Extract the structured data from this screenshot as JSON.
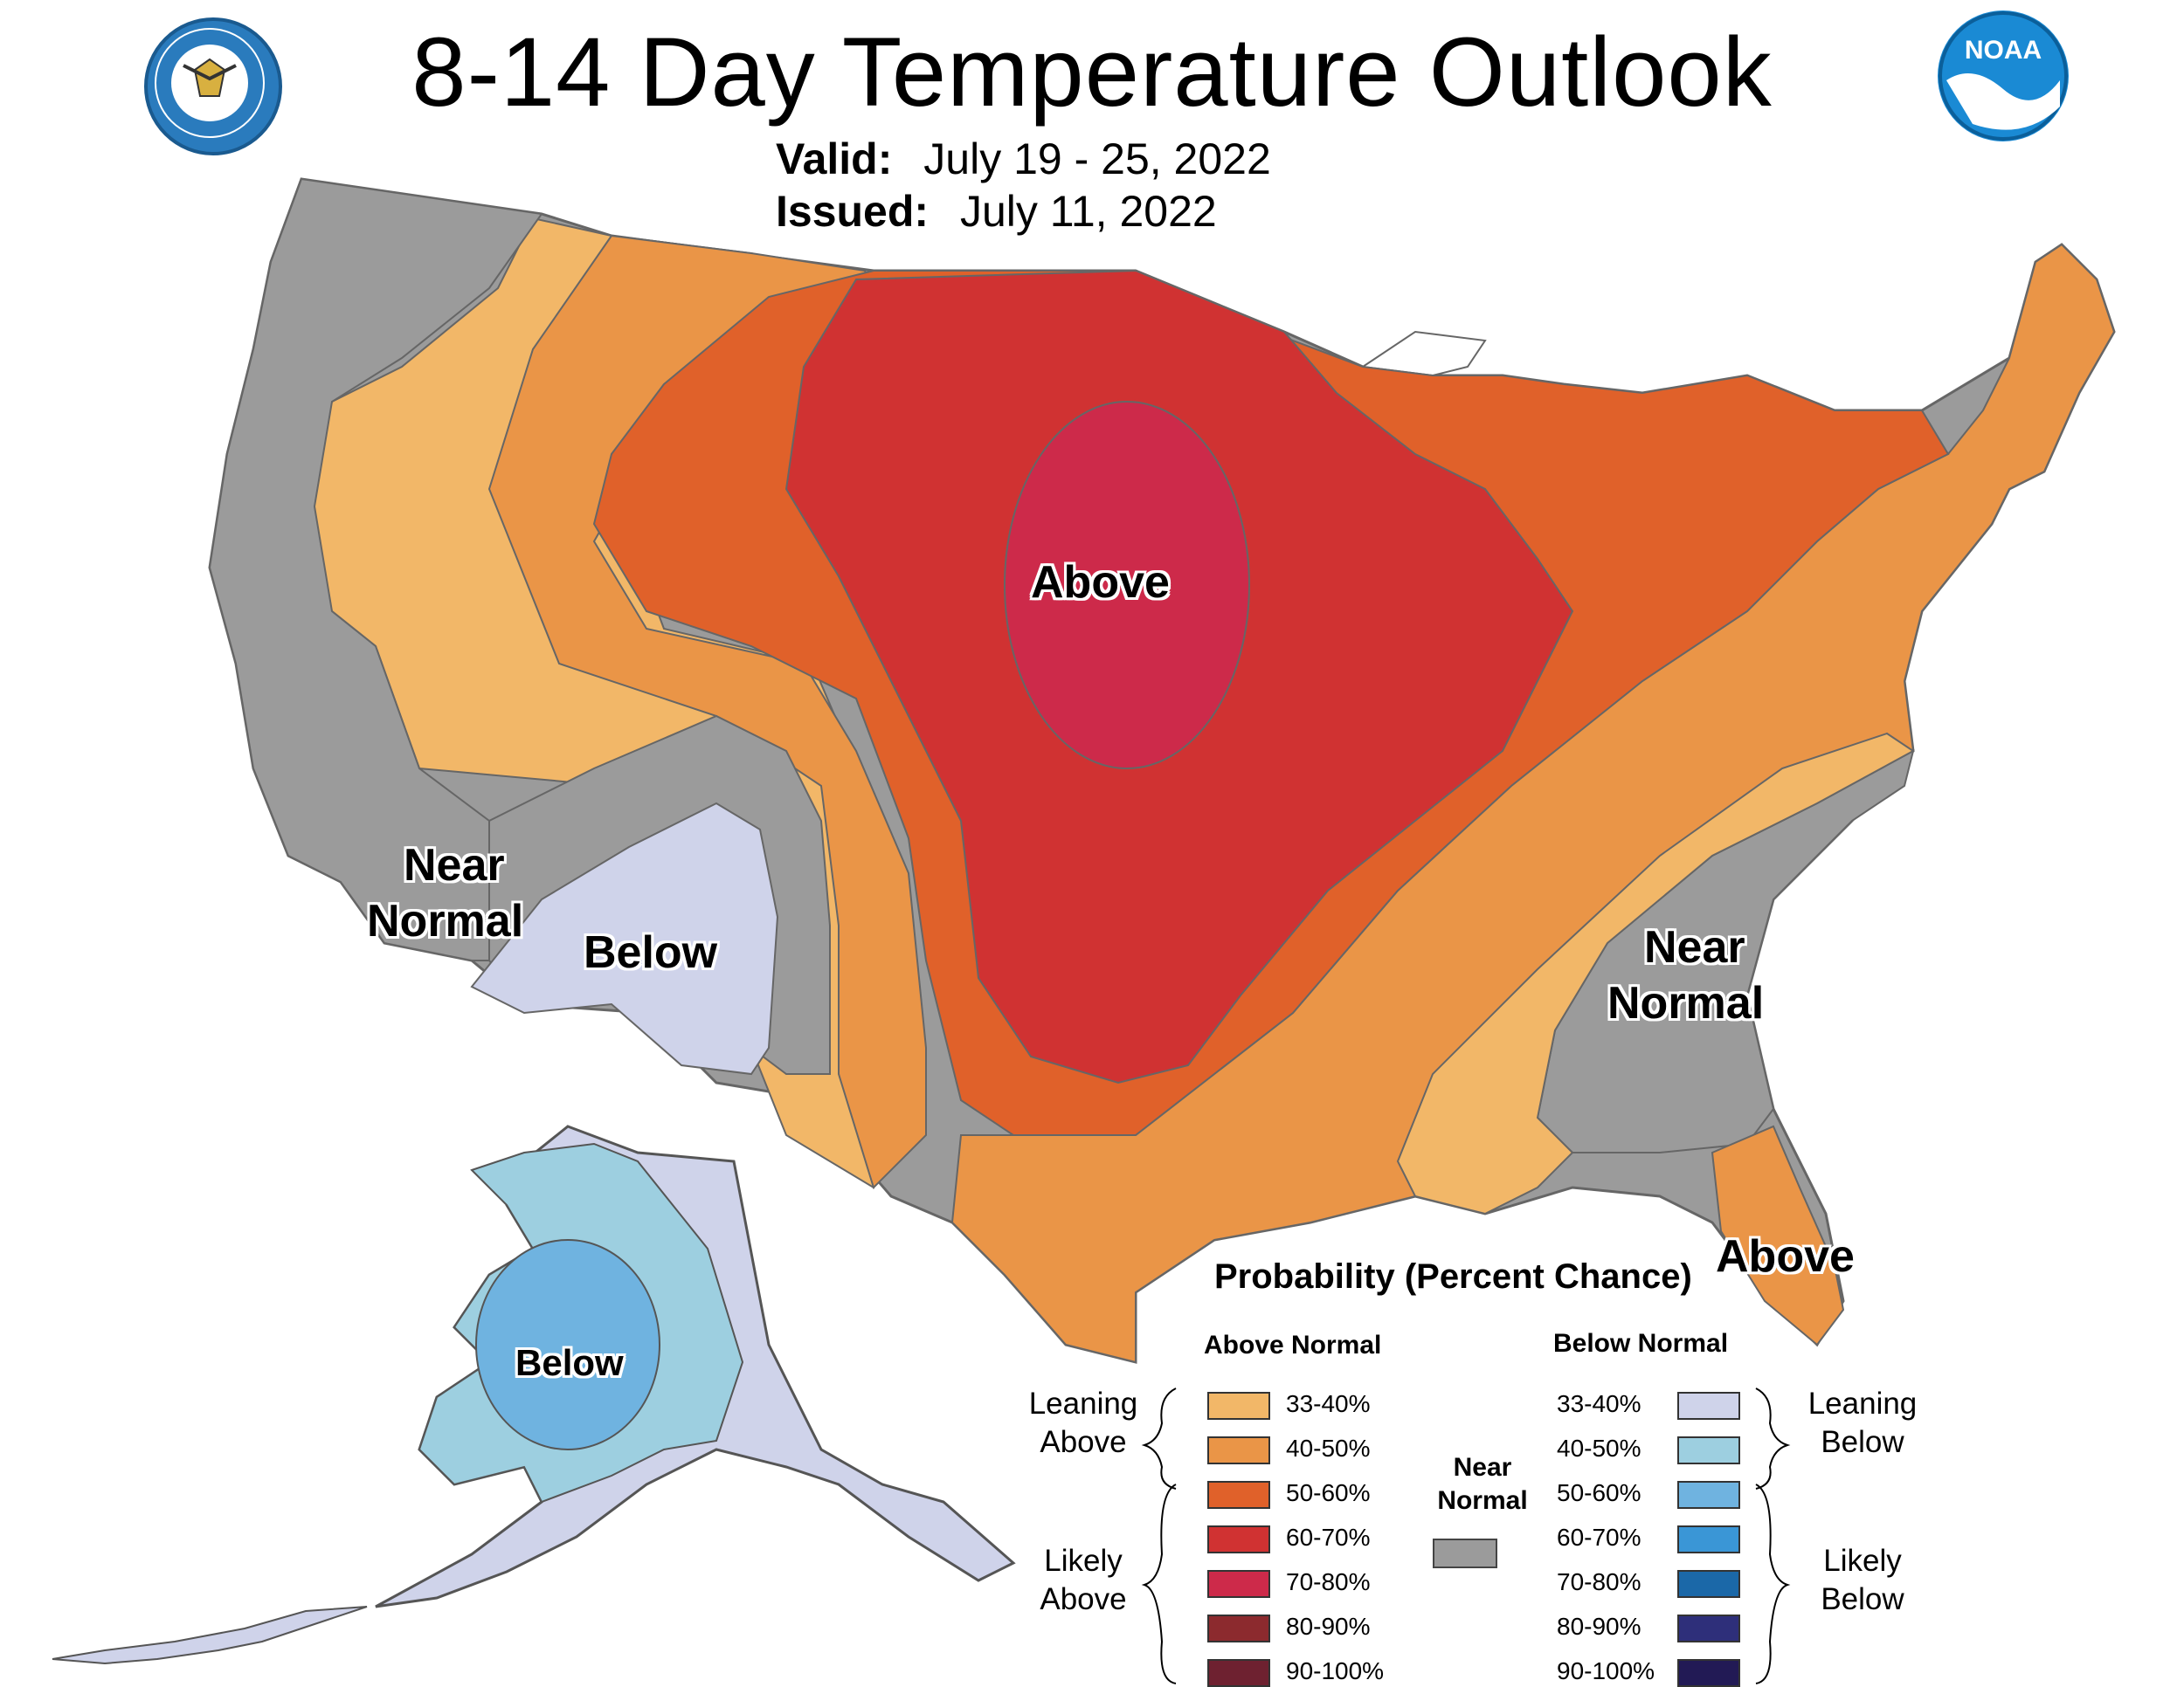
{
  "title": "8-14 Day Temperature Outlook",
  "valid_label": "Valid:",
  "valid_dates": "July 19 - 25, 2022",
  "issued_label": "Issued:",
  "issued_date": "July 11, 2022",
  "logos": {
    "left": "DEPARTMENT OF COMMERCE • UNITED STATES OF AMERICA",
    "right": "NOAA"
  },
  "region_labels": {
    "above_central": "Above",
    "near_normal_west_1": "Near",
    "near_normal_west_2": "Normal",
    "below_southwest": "Below",
    "near_normal_southeast_1": "Near",
    "near_normal_southeast_2": "Normal",
    "above_florida": "Above",
    "below_alaska": "Below"
  },
  "legend": {
    "title": "Probability (Percent Chance)",
    "above_header": "Above Normal",
    "below_header": "Below Normal",
    "leaning_above": [
      "Leaning",
      "Above"
    ],
    "likely_above": [
      "Likely",
      "Above"
    ],
    "leaning_below": [
      "Leaning",
      "Below"
    ],
    "likely_below": [
      "Likely",
      "Below"
    ],
    "near_normal": [
      "Near",
      "Normal"
    ],
    "above_categories": [
      {
        "range": "33-40%",
        "color": "#f2b768"
      },
      {
        "range": "40-50%",
        "color": "#ea9547"
      },
      {
        "range": "50-60%",
        "color": "#e0612a"
      },
      {
        "range": "60-70%",
        "color": "#d03232"
      },
      {
        "range": "70-80%",
        "color": "#cd2a4a"
      },
      {
        "range": "80-90%",
        "color": "#8c2a2e"
      },
      {
        "range": "90-100%",
        "color": "#6e2130"
      }
    ],
    "below_categories": [
      {
        "range": "33-40%",
        "color": "#cfd3ea"
      },
      {
        "range": "40-50%",
        "color": "#9dcfe0"
      },
      {
        "range": "50-60%",
        "color": "#6fb3e0"
      },
      {
        "range": "60-70%",
        "color": "#3a96d6"
      },
      {
        "range": "70-80%",
        "color": "#1b68a8"
      },
      {
        "range": "80-90%",
        "color": "#2e2f7a"
      },
      {
        "range": "90-100%",
        "color": "#221a55"
      }
    ],
    "near_normal_color": "#9b9b9b"
  }
}
